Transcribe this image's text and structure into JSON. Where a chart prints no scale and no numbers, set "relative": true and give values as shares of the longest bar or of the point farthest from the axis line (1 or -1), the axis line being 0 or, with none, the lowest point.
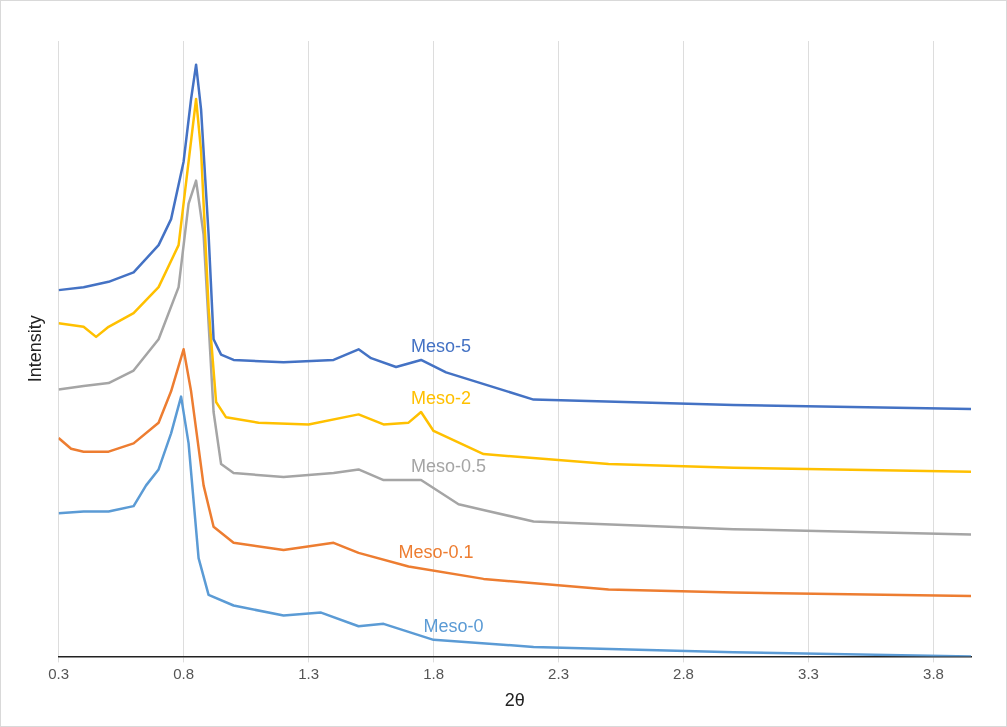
{
  "chart_data": {
    "type": "line",
    "xlabel": "2θ",
    "ylabel": "Intensity",
    "relative": true,
    "xlim": [
      0.3,
      3.95
    ],
    "xticks": [
      0.3,
      0.8,
      1.3,
      1.8,
      2.3,
      2.8,
      3.3,
      3.8
    ],
    "grid": "x",
    "legend": false,
    "marker": "none",
    "line_style": "solid",
    "series": [
      {
        "name": "Meso-5",
        "color": "#4472c4",
        "x": [
          0.3,
          0.4,
          0.5,
          0.6,
          0.7,
          0.75,
          0.8,
          0.83,
          0.85,
          0.87,
          0.9,
          0.92,
          0.95,
          1.0,
          1.2,
          1.4,
          1.5,
          1.55,
          1.65,
          1.75,
          1.85,
          2.2,
          3.0,
          3.95
        ],
        "values": [
          0.619,
          0.624,
          0.633,
          0.649,
          0.695,
          0.739,
          0.836,
          0.942,
          1,
          0.924,
          0.713,
          0.536,
          0.51,
          0.501,
          0.497,
          0.501,
          0.519,
          0.504,
          0.489,
          0.501,
          0.48,
          0.434,
          0.425,
          0.418
        ]
      },
      {
        "name": "Meso-2",
        "color": "#ffc000",
        "x": [
          0.3,
          0.4,
          0.45,
          0.5,
          0.6,
          0.7,
          0.78,
          0.82,
          0.85,
          0.87,
          0.9,
          0.93,
          0.97,
          1.1,
          1.3,
          1.5,
          1.6,
          1.7,
          1.75,
          1.8,
          2.0,
          2.5,
          3.0,
          3.95
        ],
        "values": [
          0.563,
          0.557,
          0.54,
          0.557,
          0.58,
          0.624,
          0.695,
          0.836,
          0.942,
          0.854,
          0.589,
          0.43,
          0.404,
          0.395,
          0.392,
          0.409,
          0.392,
          0.395,
          0.413,
          0.381,
          0.342,
          0.325,
          0.319,
          0.312
        ]
      },
      {
        "name": "Meso-0.5",
        "color": "#a5a5a5",
        "x": [
          0.3,
          0.4,
          0.5,
          0.6,
          0.7,
          0.78,
          0.82,
          0.85,
          0.88,
          0.92,
          0.95,
          1.0,
          1.2,
          1.4,
          1.5,
          1.6,
          1.75,
          1.9,
          2.2,
          3.0,
          3.95
        ],
        "values": [
          0.451,
          0.457,
          0.462,
          0.483,
          0.536,
          0.624,
          0.765,
          0.804,
          0.713,
          0.413,
          0.325,
          0.31,
          0.303,
          0.31,
          0.316,
          0.298,
          0.298,
          0.257,
          0.228,
          0.215,
          0.206
        ]
      },
      {
        "name": "Meso-0.1",
        "color": "#ed7d31",
        "x": [
          0.3,
          0.35,
          0.4,
          0.5,
          0.6,
          0.7,
          0.75,
          0.8,
          0.83,
          0.88,
          0.92,
          1.0,
          1.2,
          1.4,
          1.5,
          1.7,
          2.0,
          2.5,
          3.0,
          3.95
        ],
        "values": [
          0.369,
          0.351,
          0.346,
          0.346,
          0.36,
          0.395,
          0.448,
          0.519,
          0.448,
          0.289,
          0.219,
          0.192,
          0.18,
          0.192,
          0.175,
          0.152,
          0.131,
          0.113,
          0.108,
          0.102
        ]
      },
      {
        "name": "Meso-0",
        "color": "#5b9bd5",
        "x": [
          0.3,
          0.4,
          0.5,
          0.6,
          0.65,
          0.7,
          0.75,
          0.79,
          0.82,
          0.86,
          0.9,
          1.0,
          1.2,
          1.35,
          1.5,
          1.6,
          1.8,
          2.2,
          3.0,
          3.95
        ],
        "values": [
          0.242,
          0.245,
          0.245,
          0.254,
          0.289,
          0.316,
          0.377,
          0.439,
          0.36,
          0.166,
          0.104,
          0.086,
          0.069,
          0.074,
          0.051,
          0.055,
          0.028,
          0.016,
          0.007,
          0
        ]
      }
    ]
  }
}
